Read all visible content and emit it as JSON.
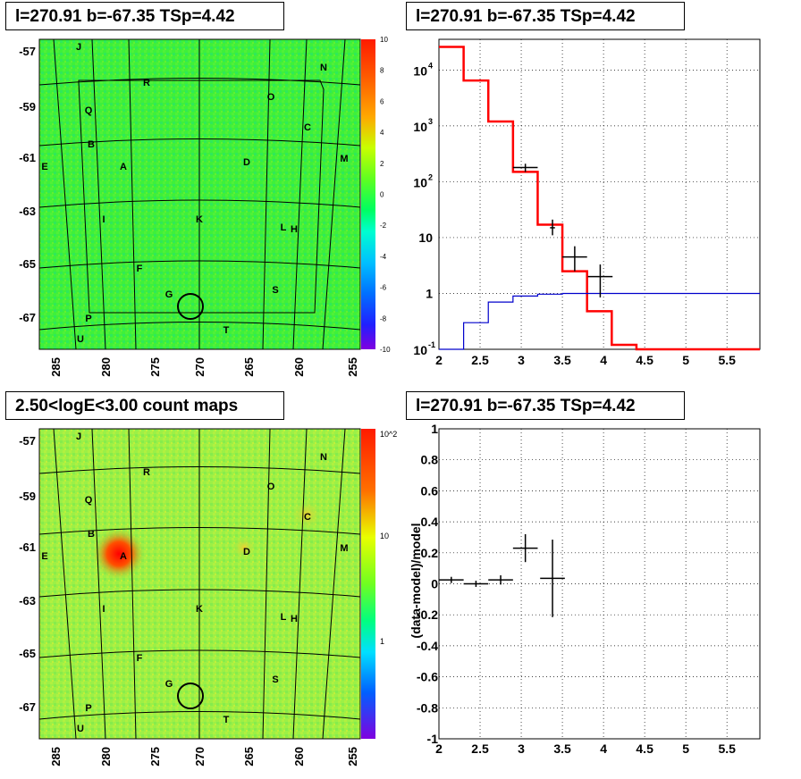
{
  "panels": {
    "tl_title": "l=270.91 b=-67.35 TSp=4.42",
    "tr_title": "l=270.91 b=-67.35 TSp=4.42",
    "bl_title": "2.50<logE<3.00 count maps",
    "br_title": "l=270.91 b=-67.35 TSp=4.42"
  },
  "chart_data": [
    {
      "type": "heatmap",
      "id": "residual-map",
      "x_ticks": [
        "285",
        "280",
        "275",
        "270",
        "265",
        "260",
        "255"
      ],
      "y_ticks": [
        "-57",
        "-59",
        "-61",
        "-63",
        "-65",
        "-67"
      ],
      "colorbar": {
        "min": -10,
        "max": 10,
        "ticks": [
          "10",
          "8",
          "6",
          "4",
          "2",
          "0",
          "-2",
          "-4",
          "-6",
          "-8",
          "-10"
        ]
      },
      "colors": {
        "background": "#3ef03a",
        "circle": "#000000"
      },
      "source_labels": [
        "J",
        "N",
        "R",
        "O",
        "Q",
        "C",
        "B",
        "M",
        "E",
        "A",
        "D",
        "I",
        "K",
        "L",
        "H",
        "F",
        "G",
        "S",
        "P",
        "T",
        "U"
      ]
    },
    {
      "type": "line",
      "id": "spectrum",
      "x_ticks": [
        "2",
        "2.5",
        "3",
        "3.5",
        "4",
        "4.5",
        "5",
        "5.5"
      ],
      "y_ticks": [
        "10^-1 (0.1)",
        "1",
        "10",
        "10^2",
        "10^3",
        "10^4"
      ],
      "xlim": [
        2.0,
        5.9
      ],
      "ylim_log": [
        -1,
        4.55
      ],
      "y_scale": "log",
      "grid": true,
      "series": [
        {
          "color": "#ff0000",
          "bin_edges": [
            2.0,
            2.3,
            2.6,
            2.9,
            3.2,
            3.5,
            3.8,
            4.1,
            4.4,
            5.9
          ],
          "values": [
            26000,
            6500,
            1200,
            150,
            17,
            2.5,
            0.48,
            0.12,
            0.1
          ]
        },
        {
          "color": "#0000cc",
          "bin_edges": [
            2.0,
            2.3,
            2.6,
            2.9,
            3.2,
            3.5,
            5.9
          ],
          "values": [
            0.05,
            0.3,
            0.7,
            0.9,
            0.97,
            1.0
          ]
        },
        {
          "color": "#000000",
          "points": [
            {
              "x": 3.05,
              "y": 180,
              "xerr": 0.15,
              "ylo": 150,
              "yhi": 210
            },
            {
              "x": 3.38,
              "y": 15,
              "xerr": 0.03,
              "ylo": 11,
              "yhi": 21
            },
            {
              "x": 3.65,
              "y": 4.5,
              "xerr": 0.15,
              "ylo": 2.5,
              "yhi": 7
            },
            {
              "x": 3.96,
              "y": 2.0,
              "xerr": 0.15,
              "ylo": 0.85,
              "yhi": 3.3
            }
          ]
        }
      ]
    },
    {
      "type": "heatmap",
      "id": "count-map",
      "x_ticks": [
        "285",
        "280",
        "275",
        "270",
        "265",
        "260",
        "255"
      ],
      "y_ticks": [
        "-57",
        "-59",
        "-61",
        "-63",
        "-65",
        "-67"
      ],
      "colorbar": {
        "scale": "log",
        "ticks": [
          "10^2",
          "10",
          "1"
        ]
      },
      "colors": {
        "background": "#9cf046",
        "hotspot": "#ff3030",
        "circle": "#000000"
      },
      "source_labels": [
        "J",
        "N",
        "R",
        "O",
        "Q",
        "C",
        "B",
        "M",
        "E",
        "A",
        "D",
        "I",
        "K",
        "L",
        "H",
        "F",
        "G",
        "S",
        "P",
        "T",
        "U"
      ]
    },
    {
      "type": "scatter",
      "id": "residual-ratio",
      "ylabel": "(data-model)/model",
      "x_ticks": [
        "2",
        "2.5",
        "3",
        "3.5",
        "4",
        "4.5",
        "5",
        "5.5"
      ],
      "y_ticks": [
        "1",
        "0.8",
        "0.6",
        "0.4",
        "0.2",
        "0",
        "-0.2",
        "-0.4",
        "-0.6",
        "-0.8",
        "-1"
      ],
      "xlim": [
        2.0,
        5.9
      ],
      "ylim": [
        -1,
        1
      ],
      "grid": true,
      "points": [
        {
          "x": 2.15,
          "y": 0.025,
          "xerr": 0.15,
          "yerr": 0.02
        },
        {
          "x": 2.45,
          "y": 0.0,
          "xerr": 0.15,
          "yerr": 0.02
        },
        {
          "x": 2.75,
          "y": 0.025,
          "xerr": 0.15,
          "yerr": 0.03
        },
        {
          "x": 3.05,
          "y": 0.23,
          "xerr": 0.15,
          "yerr": 0.09
        },
        {
          "x": 3.38,
          "y": 0.035,
          "xerr": 0.15,
          "yerr": 0.25
        }
      ]
    }
  ]
}
